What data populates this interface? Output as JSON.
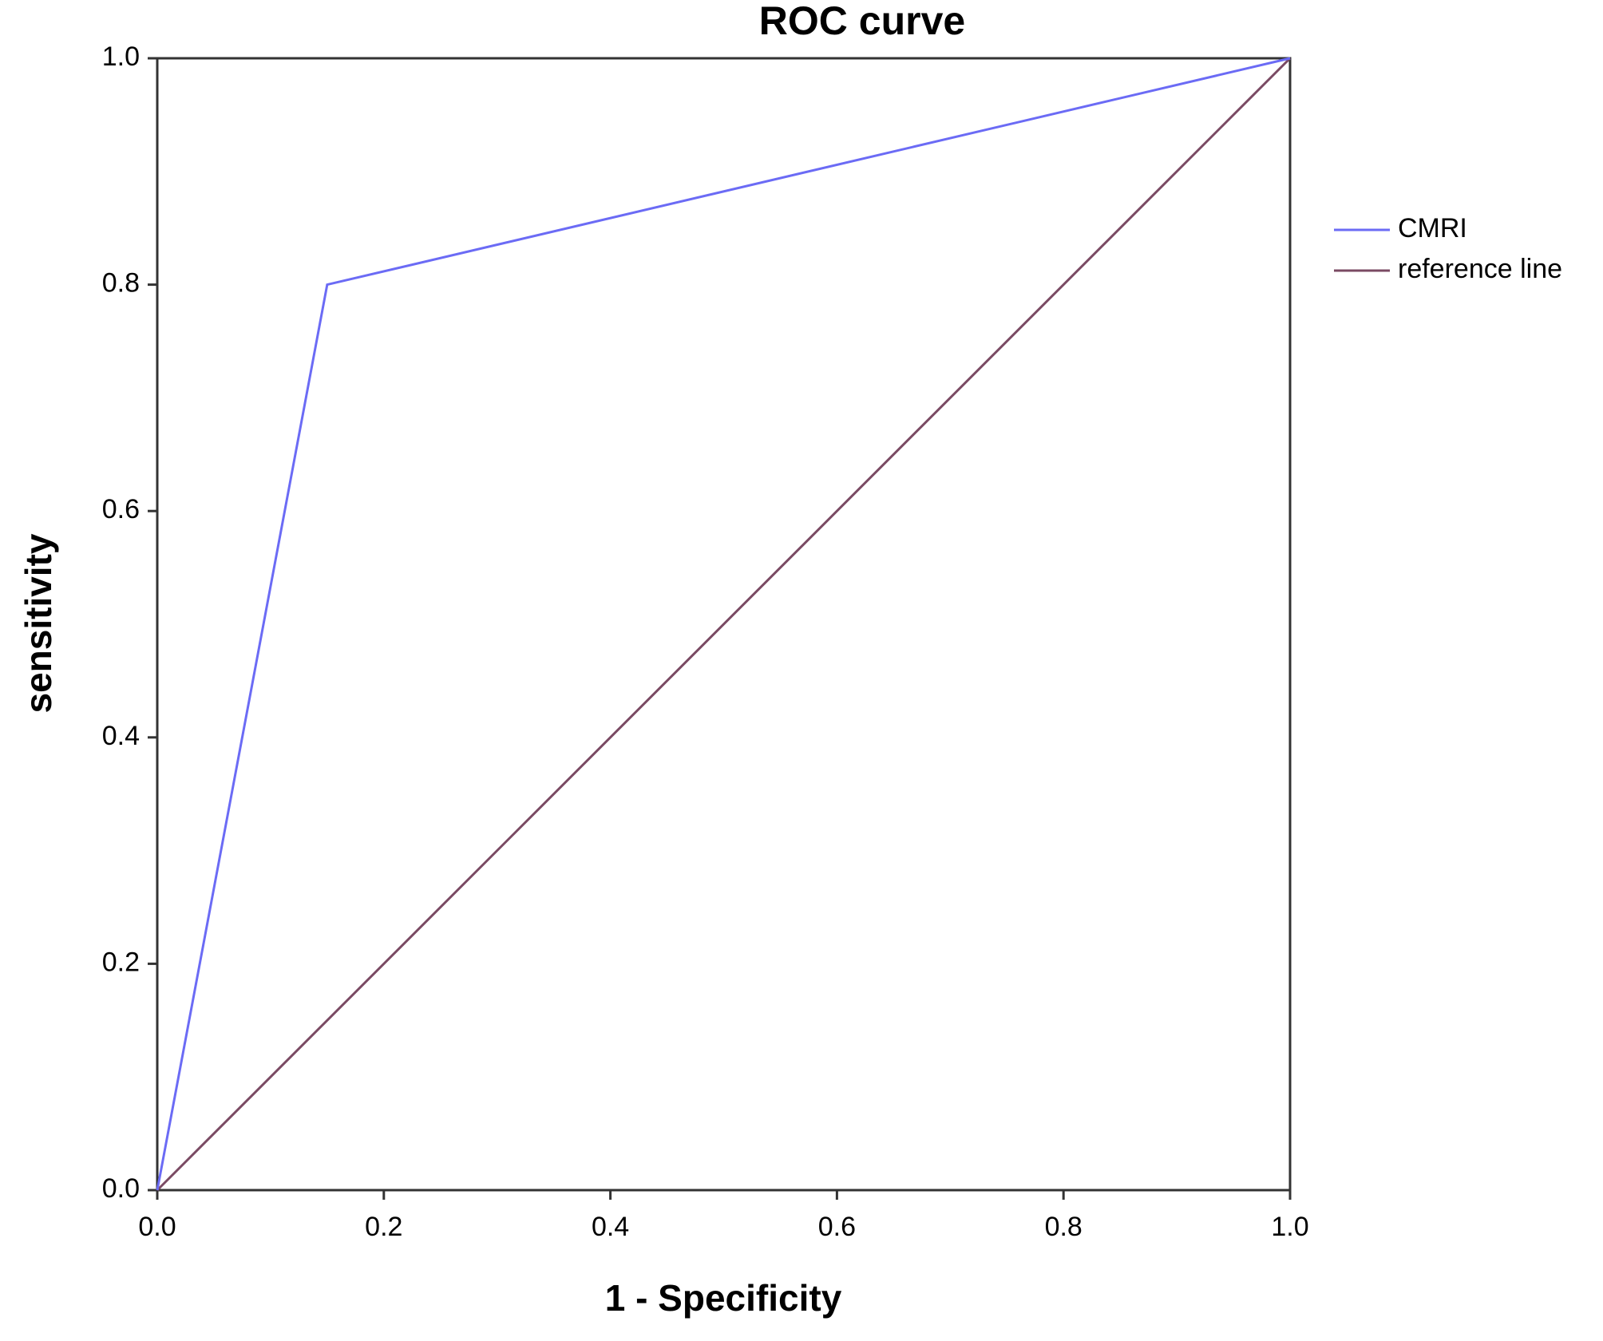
{
  "chart_data": {
    "type": "line",
    "title": "ROC curve",
    "x_label": "1 - Specificity",
    "y_label": "sensitivity",
    "series": [
      {
        "name": "CMRI",
        "color": "#6b6bf5",
        "x": [
          0,
          0.15,
          1
        ],
        "values": [
          0,
          0.8,
          1
        ]
      },
      {
        "name": "reference line",
        "color": "#7a4a63",
        "x": [
          0,
          1
        ],
        "values": [
          0,
          1
        ]
      }
    ],
    "xlim": [
      0,
      1
    ],
    "ylim": [
      0,
      1
    ],
    "xticks": [
      {
        "value": 0,
        "label": "0.0"
      },
      0.2,
      0.4,
      0.6,
      0.8,
      {
        "value": 1,
        "label": "1.0"
      }
    ],
    "yticks": [
      {
        "value": 0,
        "label": "0.0"
      },
      0.2,
      0.4,
      0.6,
      0.8,
      {
        "value": 1,
        "label": "1.0"
      }
    ],
    "legend": "right"
  }
}
